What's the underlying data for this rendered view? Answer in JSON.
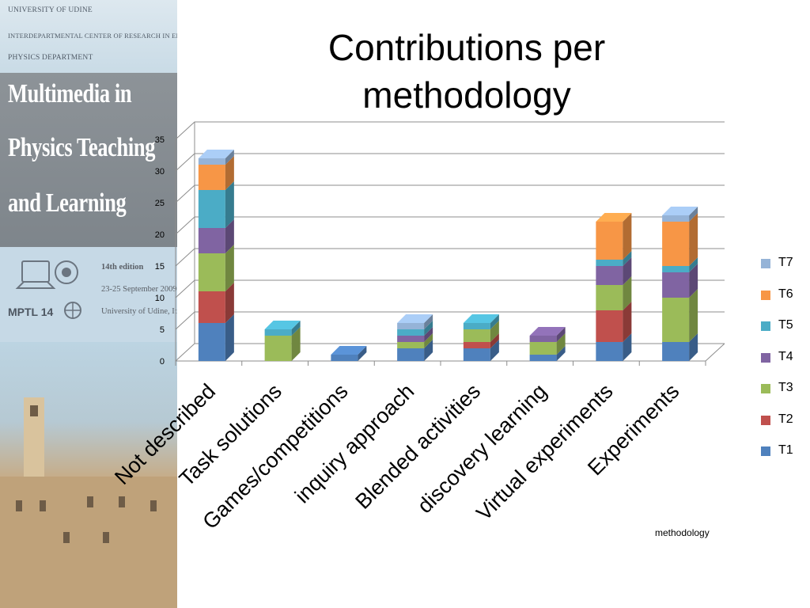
{
  "banner": {
    "institution_lines": [
      "UNIVERSITY OF UDINE",
      "INTERDEPARTMENTAL CENTER OF RESEARCH IN EDUCATION",
      "PHYSICS DEPARTMENT"
    ],
    "conference_lines": [
      "Multimedia in",
      "Physics Teaching",
      "and Learning"
    ],
    "edition_lines": [
      "14th  edition",
      "23-25 September 2009",
      "University of Udine, Italy"
    ],
    "logo_text": "MPTL  14"
  },
  "chart_data": {
    "type": "bar",
    "stacked": true,
    "title": "Contributions per methodology",
    "xlabel": "methodology",
    "ylabel": "",
    "ylim": [
      0,
      35
    ],
    "yticks": [
      0,
      5,
      10,
      15,
      20,
      25,
      30,
      35
    ],
    "grid": true,
    "legend_position": "right",
    "categories": [
      "Not described",
      "Task solutions",
      "Games/competitions",
      "inquiry approach",
      "Blended activities",
      "discovery learning",
      "Virtual experiments",
      "Experiments"
    ],
    "series": [
      {
        "name": "T1",
        "color": "#4f81bd",
        "values": [
          6,
          0,
          1,
          2,
          2,
          1,
          3,
          3
        ]
      },
      {
        "name": "T2",
        "color": "#c0504d",
        "values": [
          5,
          0,
          0,
          0,
          1,
          0,
          5,
          0
        ]
      },
      {
        "name": "T3",
        "color": "#9bbb59",
        "values": [
          6,
          4,
          0,
          1,
          2,
          2,
          4,
          7
        ]
      },
      {
        "name": "T4",
        "color": "#8064a2",
        "values": [
          4,
          0,
          0,
          1,
          0,
          1,
          3,
          4
        ]
      },
      {
        "name": "T5",
        "color": "#4bacc6",
        "values": [
          6,
          1,
          0,
          1,
          1,
          0,
          1,
          1
        ]
      },
      {
        "name": "T6",
        "color": "#f79646",
        "values": [
          4,
          0,
          0,
          0,
          0,
          0,
          6,
          7
        ]
      },
      {
        "name": "T7",
        "color": "#95b3d7",
        "values": [
          1,
          0,
          0,
          1,
          0,
          0,
          0,
          1
        ]
      }
    ]
  }
}
